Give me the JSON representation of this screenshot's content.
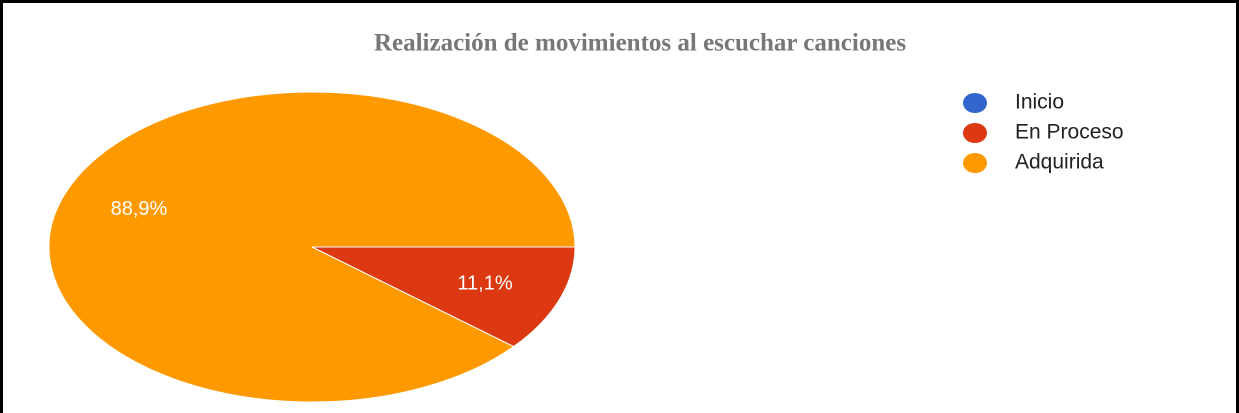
{
  "chart_data": {
    "type": "pie",
    "title": "Realización de movimientos al escuchar canciones",
    "categories": [
      "Inicio",
      "En Proceso",
      "Adquirida"
    ],
    "values": [
      0,
      11.1,
      88.9
    ],
    "value_labels": [
      null,
      "11,1%",
      "88,9%"
    ],
    "colors": [
      "#3366cc",
      "#dc3912",
      "#ff9900"
    ],
    "legend": "right"
  }
}
